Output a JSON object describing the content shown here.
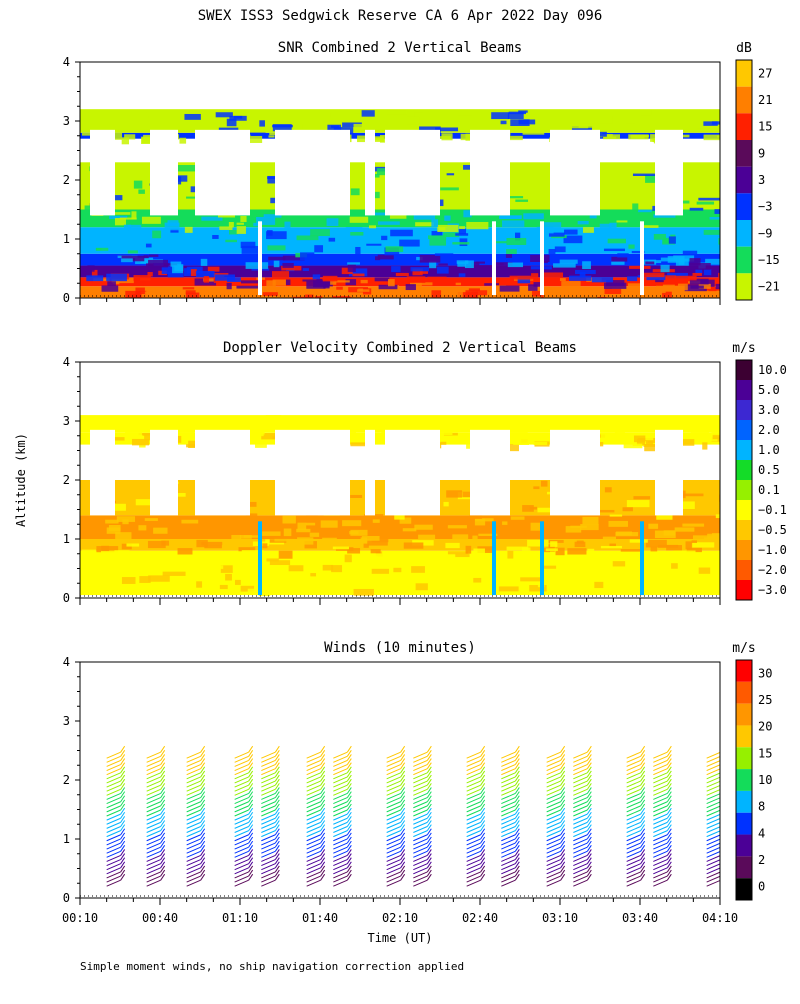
{
  "title": "SWEX ISS3 Sedgwick Reserve CA   6 Apr 2022 Day 096",
  "ylabel": "Altitude (km)",
  "xlabel": "Time (UT)",
  "footnote": "Simple moment winds, no ship navigation correction applied",
  "x_ticks": [
    "00:10",
    "00:40",
    "01:10",
    "01:40",
    "02:10",
    "02:40",
    "03:10",
    "03:40",
    "04:10"
  ],
  "y_ticks": [
    "0",
    "1",
    "2",
    "3",
    "4"
  ],
  "chart_data": [
    {
      "type": "heatmap",
      "title": "SNR Combined 2 Vertical Beams",
      "units": "dB",
      "xlim": [
        "00:10",
        "04:10"
      ],
      "ylim": [
        0,
        4
      ],
      "colorbar": {
        "labels": [
          "27",
          "21",
          "15",
          "9",
          "3",
          "−3",
          "−9",
          "−15",
          "−21"
        ],
        "colors": [
          "#ffc800",
          "#ff7f00",
          "#ff2000",
          "#5a0a5a",
          "#4b0096",
          "#0032ff",
          "#00b4ff",
          "#14dc5a",
          "#c8f500"
        ]
      },
      "layers": [
        {
          "from_km": 0.0,
          "to_km": 0.2,
          "color": "#ff7f00"
        },
        {
          "from_km": 0.2,
          "to_km": 0.35,
          "color": "#ff2000"
        },
        {
          "from_km": 0.35,
          "to_km": 0.55,
          "color": "#4b0096"
        },
        {
          "from_km": 0.55,
          "to_km": 0.75,
          "color": "#0032ff"
        },
        {
          "from_km": 0.75,
          "to_km": 1.2,
          "color": "#00b4ff"
        },
        {
          "from_km": 1.2,
          "to_km": 1.5,
          "color": "#14dc5a"
        },
        {
          "from_km": 1.5,
          "to_km": 2.3,
          "color": "#c8f500"
        },
        {
          "from_km": 2.7,
          "to_km": 2.8,
          "color": "#0032ff"
        },
        {
          "from_km": 2.8,
          "to_km": 3.2,
          "color": "#c8f500"
        }
      ]
    },
    {
      "type": "heatmap",
      "title": "Doppler Velocity Combined 2 Vertical Beams",
      "units": "m/s",
      "xlim": [
        "00:10",
        "04:10"
      ],
      "ylim": [
        0,
        4
      ],
      "colorbar": {
        "labels": [
          "10.0",
          "5.0",
          "3.0",
          "2.0",
          "1.0",
          "0.5",
          "0.1",
          "−0.1",
          "−0.5",
          "−1.0",
          "−2.0",
          "−3.0"
        ],
        "colors": [
          "#3c0032",
          "#4b0096",
          "#3c28d2",
          "#0064ff",
          "#00b4ff",
          "#14dc28",
          "#96f000",
          "#ffff00",
          "#ffc800",
          "#ff9600",
          "#ff5a00",
          "#ff0000"
        ]
      },
      "layers": [
        {
          "from_km": 0.05,
          "to_km": 0.8,
          "color": "#ffff00"
        },
        {
          "from_km": 0.8,
          "to_km": 1.0,
          "color": "#ffc800"
        },
        {
          "from_km": 1.0,
          "to_km": 1.4,
          "color": "#ff9600"
        },
        {
          "from_km": 1.4,
          "to_km": 2.0,
          "color": "#ffc800"
        },
        {
          "from_km": 2.6,
          "to_km": 2.8,
          "color": "#ffff00"
        },
        {
          "from_km": 2.8,
          "to_km": 3.1,
          "color": "#ffff00"
        }
      ]
    },
    {
      "type": "scatter",
      "title": "Winds (10 minutes)",
      "units": "m/s",
      "xlim": [
        "00:10",
        "04:10"
      ],
      "ylim": [
        0,
        4
      ],
      "colorbar": {
        "labels": [
          "30",
          "25",
          "20",
          "15",
          "10",
          "8",
          "4",
          "2",
          "0"
        ],
        "colors": [
          "#ff0000",
          "#ff5a00",
          "#ff9600",
          "#ffc800",
          "#96f000",
          "#14dc5a",
          "#00b4ff",
          "#0032ff",
          "#4b0096",
          "#5a0a5a",
          "#000000"
        ]
      },
      "profiles": [
        "00:20",
        "00:35",
        "00:50",
        "01:08",
        "01:18",
        "01:35",
        "01:45",
        "02:05",
        "02:15",
        "02:35",
        "02:48",
        "03:05",
        "03:15",
        "03:35",
        "03:45",
        "04:05"
      ]
    }
  ]
}
